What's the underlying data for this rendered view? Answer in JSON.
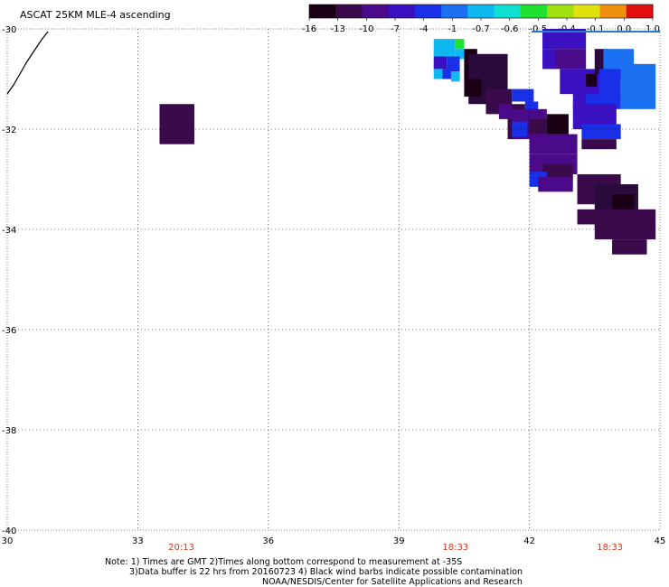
{
  "title": "ASCAT 25KM MLE-4 ascending",
  "colorbar": {
    "labels": [
      "-16",
      "-13",
      "-10",
      "-7",
      "-4",
      "-1",
      "-0.7",
      "-0.6",
      "-0.5",
      "-0.4",
      "-0.1",
      "0.0",
      "1.0"
    ],
    "colors": [
      "#1a0014",
      "#3a0a4a",
      "#4a0a8a",
      "#3a10c0",
      "#1a30e8",
      "#1a70f0",
      "#10b8f0",
      "#10e0d0",
      "#20e030",
      "#a0e010",
      "#e0e010",
      "#f09010",
      "#e01010"
    ]
  },
  "map": {
    "lon_range": [
      30,
      45
    ],
    "lat_range": [
      -40,
      -30
    ],
    "x_ticks": [
      "30",
      "33",
      "36",
      "39",
      "42",
      "45"
    ],
    "y_ticks": [
      "-30",
      "-32",
      "-34",
      "-36",
      "-38",
      "-40"
    ],
    "x_tick_values": [
      30,
      33,
      36,
      39,
      42,
      45
    ],
    "y_tick_values": [
      -30,
      -32,
      -34,
      -36,
      -38,
      -40
    ],
    "times": [
      {
        "lon": 34.0,
        "label": "20:13"
      },
      {
        "lon": 40.3,
        "label": "18:33"
      },
      {
        "lon": 43.85,
        "label": "18:33"
      }
    ],
    "cells": [
      {
        "lon": 33.5,
        "lat": -31.5,
        "w": 0.8,
        "h": 0.8,
        "color": "#3a0a4a"
      },
      {
        "lon": 39.8,
        "lat": -30.2,
        "w": 0.5,
        "h": 0.35,
        "color": "#10b8f0"
      },
      {
        "lon": 40.3,
        "lat": -30.2,
        "w": 0.2,
        "h": 0.2,
        "color": "#20e030"
      },
      {
        "lon": 40.3,
        "lat": -30.4,
        "w": 0.2,
        "h": 0.2,
        "color": "#10b8f0"
      },
      {
        "lon": 39.8,
        "lat": -30.55,
        "w": 0.3,
        "h": 0.25,
        "color": "#3a10c0"
      },
      {
        "lon": 40.1,
        "lat": -30.55,
        "w": 0.3,
        "h": 0.3,
        "color": "#1a30e8"
      },
      {
        "lon": 39.8,
        "lat": -30.8,
        "w": 0.2,
        "h": 0.2,
        "color": "#10b8f0"
      },
      {
        "lon": 40.0,
        "lat": -30.8,
        "w": 0.2,
        "h": 0.2,
        "color": "#1a30e8"
      },
      {
        "lon": 40.2,
        "lat": -30.85,
        "w": 0.2,
        "h": 0.2,
        "color": "#10b8f0"
      },
      {
        "lon": 40.5,
        "lat": -30.4,
        "w": 0.3,
        "h": 0.6,
        "color": "#1a0014"
      },
      {
        "lon": 40.6,
        "lat": -30.5,
        "w": 0.9,
        "h": 1.0,
        "color": "#2a0a3a"
      },
      {
        "lon": 40.5,
        "lat": -31.0,
        "w": 0.4,
        "h": 0.35,
        "color": "#1a0014"
      },
      {
        "lon": 41.0,
        "lat": -31.2,
        "w": 0.6,
        "h": 0.5,
        "color": "#3a0a4a"
      },
      {
        "lon": 41.5,
        "lat": -31.5,
        "w": 0.4,
        "h": 0.7,
        "color": "#3a0a4a"
      },
      {
        "lon": 41.3,
        "lat": -31.5,
        "w": 0.3,
        "h": 0.3,
        "color": "#4a0a8a"
      },
      {
        "lon": 41.6,
        "lat": -31.2,
        "w": 0.5,
        "h": 0.25,
        "color": "#1a30e8"
      },
      {
        "lon": 41.9,
        "lat": -31.45,
        "w": 0.3,
        "h": 0.25,
        "color": "#1a30e8"
      },
      {
        "lon": 41.6,
        "lat": -31.6,
        "w": 0.8,
        "h": 0.6,
        "color": "#4a0a8a"
      },
      {
        "lon": 41.6,
        "lat": -31.85,
        "w": 0.35,
        "h": 0.3,
        "color": "#1a30e8"
      },
      {
        "lon": 42.0,
        "lat": -31.8,
        "w": 0.4,
        "h": 0.3,
        "color": "#3a0a4a"
      },
      {
        "lon": 42.4,
        "lat": -31.7,
        "w": 0.5,
        "h": 0.4,
        "color": "#1a0014"
      },
      {
        "lon": 42.0,
        "lat": -32.1,
        "w": 1.1,
        "h": 0.4,
        "color": "#4a0a8a"
      },
      {
        "lon": 42.0,
        "lat": -32.5,
        "w": 1.1,
        "h": 0.4,
        "color": "#4a0a8a"
      },
      {
        "lon": 42.3,
        "lat": -32.7,
        "w": 0.7,
        "h": 0.3,
        "color": "#3a0a4a"
      },
      {
        "lon": 42.0,
        "lat": -32.85,
        "w": 0.4,
        "h": 0.3,
        "color": "#1a30e8"
      },
      {
        "lon": 42.2,
        "lat": -32.95,
        "w": 0.8,
        "h": 0.3,
        "color": "#4a0a8a"
      },
      {
        "lon": 43.1,
        "lat": -32.9,
        "w": 1.0,
        "h": 0.6,
        "color": "#3a0a4a"
      },
      {
        "lon": 43.5,
        "lat": -33.1,
        "w": 1.0,
        "h": 0.9,
        "color": "#2a0a3a"
      },
      {
        "lon": 43.9,
        "lat": -33.3,
        "w": 0.5,
        "h": 0.5,
        "color": "#1a0014"
      },
      {
        "lon": 43.1,
        "lat": -33.6,
        "w": 0.5,
        "h": 0.3,
        "color": "#3a0a4a"
      },
      {
        "lon": 43.5,
        "lat": -33.6,
        "w": 1.4,
        "h": 0.6,
        "color": "#3a0a4a"
      },
      {
        "lon": 43.9,
        "lat": -34.2,
        "w": 0.8,
        "h": 0.3,
        "color": "#3a0a4a"
      },
      {
        "lon": 42.3,
        "lat": -30.0,
        "w": 1.0,
        "h": 0.4,
        "color": "#3a10c0"
      },
      {
        "lon": 42.5,
        "lat": -30.4,
        "w": 0.8,
        "h": 0.4,
        "color": "#4a0a8a"
      },
      {
        "lon": 42.3,
        "lat": -30.4,
        "w": 0.3,
        "h": 0.4,
        "color": "#3a10c0"
      },
      {
        "lon": 42.7,
        "lat": -30.8,
        "w": 1.0,
        "h": 0.5,
        "color": "#3a10c0"
      },
      {
        "lon": 43.0,
        "lat": -31.2,
        "w": 0.7,
        "h": 0.4,
        "color": "#3a10c0"
      },
      {
        "lon": 43.5,
        "lat": -30.4,
        "w": 0.3,
        "h": 0.5,
        "color": "#2a0a3a"
      },
      {
        "lon": 43.7,
        "lat": -30.4,
        "w": 0.7,
        "h": 0.6,
        "color": "#1a70f0"
      },
      {
        "lon": 43.6,
        "lat": -30.8,
        "w": 0.5,
        "h": 0.6,
        "color": "#1a30e8"
      },
      {
        "lon": 44.1,
        "lat": -30.7,
        "w": 0.8,
        "h": 0.9,
        "color": "#1a70f0"
      },
      {
        "lon": 43.3,
        "lat": -31.3,
        "w": 0.8,
        "h": 0.3,
        "color": "#1a30e8"
      },
      {
        "lon": 43.0,
        "lat": -31.5,
        "w": 1.0,
        "h": 0.5,
        "color": "#3a10c0"
      },
      {
        "lon": 43.2,
        "lat": -31.9,
        "w": 0.9,
        "h": 0.3,
        "color": "#1a30e8"
      },
      {
        "lon": 43.2,
        "lat": -32.2,
        "w": 0.8,
        "h": 0.2,
        "color": "#3a0a4a"
      },
      {
        "lon": 43.3,
        "lat": -30.9,
        "w": 0.25,
        "h": 0.25,
        "color": "#1a0014"
      }
    ]
  },
  "notes": [
    "Note: 1) Times are GMT 2)Times along bottom correspond to measurement at -35S",
    "3)Data buffer is 22 hrs from 20160723 4) Black wind barbs indicate possible contamination",
    "NOAA/NESDIS/Center for Satellite Applications and Research"
  ]
}
